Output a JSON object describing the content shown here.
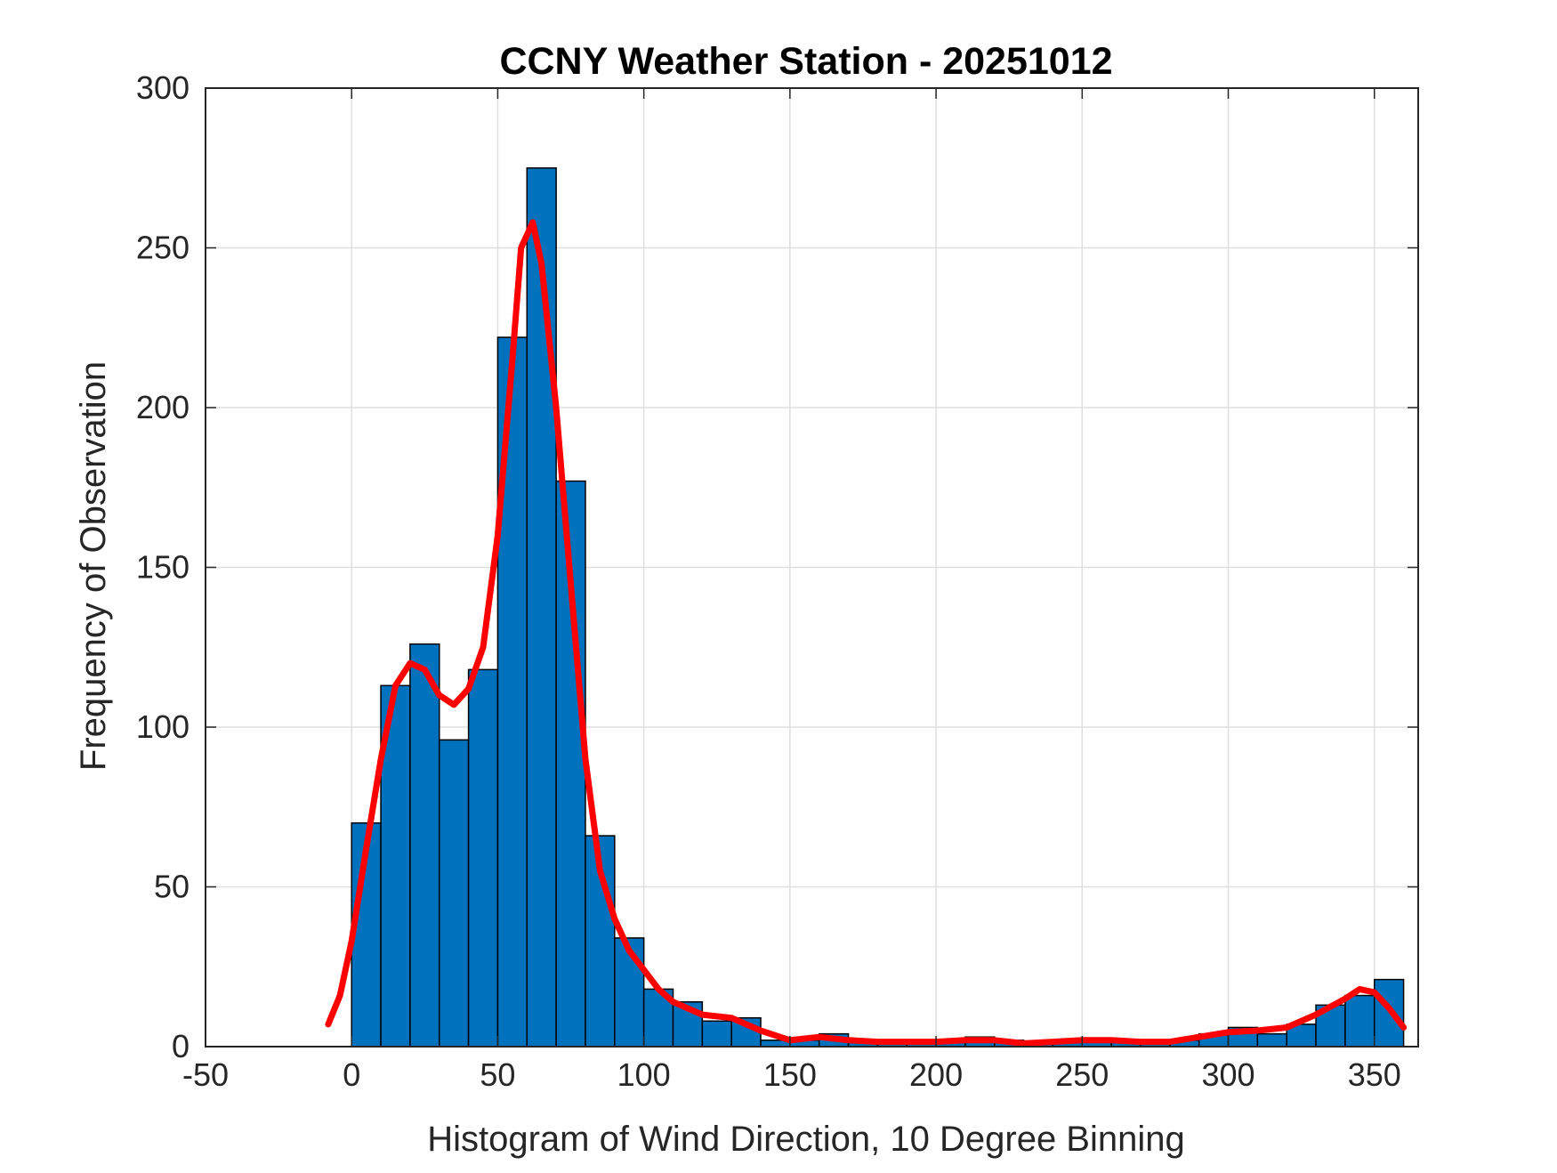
{
  "chart_data": {
    "type": "bar",
    "title": "CCNY Weather Station - 20251012",
    "xlabel": "Histogram of Wind Direction, 10 Degree Binning",
    "ylabel": "Frequency of Observation",
    "xlim": [
      -50,
      365
    ],
    "ylim": [
      0,
      300
    ],
    "xticks": [
      -50,
      0,
      50,
      100,
      150,
      200,
      250,
      300,
      350
    ],
    "yticks": [
      0,
      50,
      100,
      150,
      200,
      250,
      300
    ],
    "grid": true,
    "bin_width": 10,
    "bins": [
      {
        "start": 0,
        "count": 70
      },
      {
        "start": 10,
        "count": 113
      },
      {
        "start": 20,
        "count": 126
      },
      {
        "start": 30,
        "count": 96
      },
      {
        "start": 40,
        "count": 118
      },
      {
        "start": 50,
        "count": 222
      },
      {
        "start": 60,
        "count": 275
      },
      {
        "start": 70,
        "count": 177
      },
      {
        "start": 80,
        "count": 66
      },
      {
        "start": 90,
        "count": 34
      },
      {
        "start": 100,
        "count": 18
      },
      {
        "start": 110,
        "count": 14
      },
      {
        "start": 120,
        "count": 8
      },
      {
        "start": 130,
        "count": 9
      },
      {
        "start": 140,
        "count": 2
      },
      {
        "start": 150,
        "count": 2
      },
      {
        "start": 160,
        "count": 4
      },
      {
        "start": 170,
        "count": 2
      },
      {
        "start": 180,
        "count": 1
      },
      {
        "start": 190,
        "count": 2
      },
      {
        "start": 200,
        "count": 2
      },
      {
        "start": 210,
        "count": 3
      },
      {
        "start": 220,
        "count": 2
      },
      {
        "start": 230,
        "count": 1
      },
      {
        "start": 240,
        "count": 2
      },
      {
        "start": 250,
        "count": 2
      },
      {
        "start": 260,
        "count": 2
      },
      {
        "start": 270,
        "count": 1
      },
      {
        "start": 280,
        "count": 2
      },
      {
        "start": 290,
        "count": 4
      },
      {
        "start": 300,
        "count": 6
      },
      {
        "start": 310,
        "count": 4
      },
      {
        "start": 320,
        "count": 7
      },
      {
        "start": 330,
        "count": 13
      },
      {
        "start": 340,
        "count": 16
      },
      {
        "start": 350,
        "count": 21
      }
    ],
    "density_curve": {
      "x": [
        -8,
        -4,
        0,
        5,
        10,
        15,
        20,
        25,
        30,
        35,
        40,
        45,
        50,
        55,
        58,
        62,
        65,
        70,
        75,
        80,
        85,
        90,
        95,
        100,
        105,
        110,
        115,
        120,
        130,
        140,
        150,
        160,
        170,
        180,
        190,
        200,
        210,
        220,
        230,
        240,
        250,
        260,
        270,
        280,
        290,
        300,
        310,
        320,
        330,
        340,
        345,
        350,
        355,
        360
      ],
      "y": [
        7,
        16,
        33,
        62,
        90,
        113,
        120,
        118,
        110,
        107,
        112,
        125,
        160,
        215,
        250,
        258,
        245,
        200,
        145,
        90,
        55,
        40,
        30,
        24,
        18,
        14,
        12,
        10,
        9,
        5,
        2,
        3,
        2,
        1.5,
        1.5,
        1.5,
        2,
        2,
        1,
        1.5,
        2,
        2,
        1.5,
        1.5,
        3,
        4.5,
        5,
        6,
        10,
        15,
        18,
        17,
        12,
        6
      ]
    },
    "colors": {
      "bars": "#0072bd",
      "bar_edge": "#000000",
      "density": "#ff0000"
    }
  }
}
